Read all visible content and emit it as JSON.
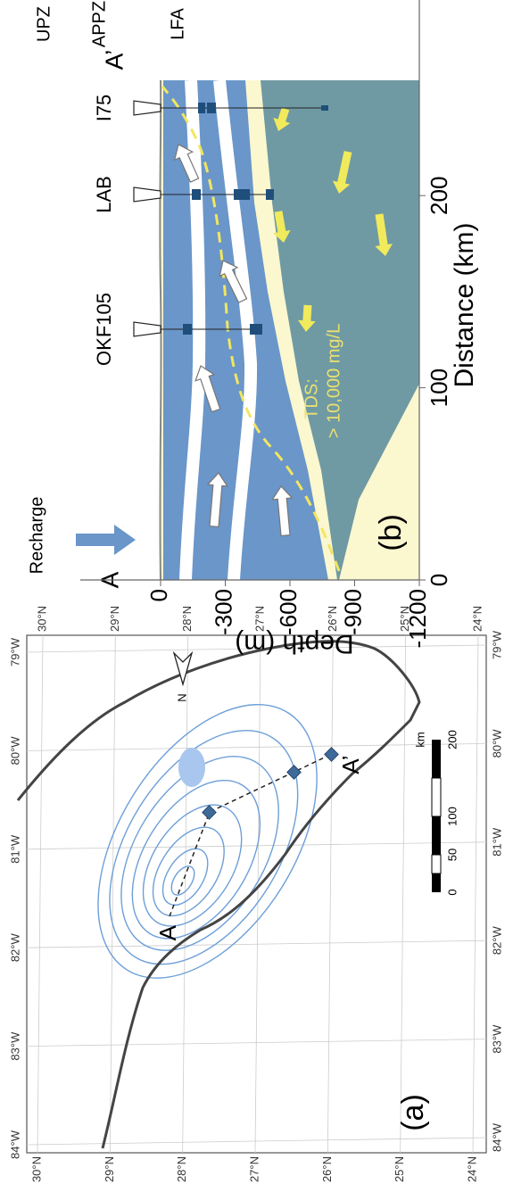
{
  "panel_a": {
    "label": "(a)",
    "north": "N",
    "point_a": "A",
    "point_a2": "A’",
    "lon_labels": [
      "84°W",
      "83°W",
      "82°W",
      "81°W",
      "80°W",
      "79°W"
    ],
    "lat_labels": [
      "30°N",
      "29°N",
      "28°N",
      "27°N",
      "26°N",
      "25°N",
      "24°N"
    ],
    "scale_bar": {
      "ticks": [
        "0",
        "50",
        "100",
        "200"
      ],
      "unit": "km"
    }
  },
  "panel_b": {
    "label": "(b)",
    "recharge": "Recharge",
    "point_a": "A",
    "point_a2": "A’",
    "wells": [
      "OKF105",
      "LAB",
      "I75"
    ],
    "zones": [
      "UPZ",
      "APPZ",
      "LFA"
    ],
    "tds": [
      "TDS:",
      "> 10,000 mg/L"
    ],
    "x_label": "Distance (km)",
    "y_label": "Depth (m)",
    "xlim": [
      0,
      260
    ],
    "xticks": [
      0,
      100,
      200
    ],
    "ylim": [
      -1200,
      0
    ],
    "yticks": [
      0,
      -300,
      -600,
      -900,
      -1200
    ]
  }
}
